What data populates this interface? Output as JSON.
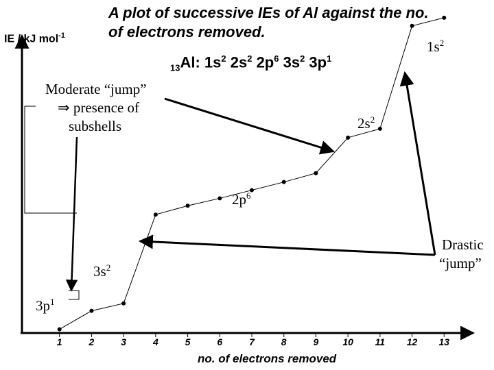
{
  "chart_data": {
    "type": "line",
    "title": "A plot of successive IEs of Al against the no. of electrons removed.",
    "title_line1": "A plot of successive IEs of Al against the no.",
    "title_line2": "of electrons removed.",
    "ylabel": "IE / kJ mol",
    "ylabel_exp": "-1",
    "xlabel": "no. of electrons removed",
    "x": [
      1,
      2,
      3,
      4,
      5,
      6,
      7,
      8,
      9,
      10,
      11,
      12,
      13
    ],
    "y": [
      0.5,
      3.0,
      4.0,
      16.0,
      17.2,
      18.2,
      19.3,
      20.4,
      21.6,
      26.4,
      27.6,
      41.5,
      42.6
    ],
    "y_scale": "relative (unlabelled axis)",
    "xlim": [
      0,
      14
    ],
    "ylim": [
      0,
      45
    ],
    "grid": false,
    "x_tick_labels": [
      "1",
      "2",
      "3",
      "4",
      "5",
      "6",
      "7",
      "8",
      "9",
      "10",
      "11",
      "12",
      "13"
    ]
  },
  "config": {
    "prefix": "13",
    "symbol": "Al",
    "parts": [
      {
        "base": ": 1s",
        "exp": "2"
      },
      {
        "base": " 2s",
        "exp": "2"
      },
      {
        "base": " 2p",
        "exp": "6"
      },
      {
        "base": " 3s",
        "exp": "2"
      },
      {
        "base": " 3p",
        "exp": "1"
      }
    ]
  },
  "annotations": {
    "moderate": {
      "line1": "Moderate “jump”",
      "line2": "⇒ presence of",
      "line3": "subshells"
    },
    "drastic": {
      "line1": "Drastic",
      "line2": "“jump”"
    },
    "shells": [
      {
        "base": "1s",
        "exp": "2"
      },
      {
        "base": "2s",
        "exp": "2"
      },
      {
        "base": "2p",
        "exp": "6"
      },
      {
        "base": "3s",
        "exp": "2"
      },
      {
        "base": "3p",
        "exp": "1"
      }
    ]
  },
  "colors": {
    "line": "#000000",
    "background": "#ffffff"
  }
}
